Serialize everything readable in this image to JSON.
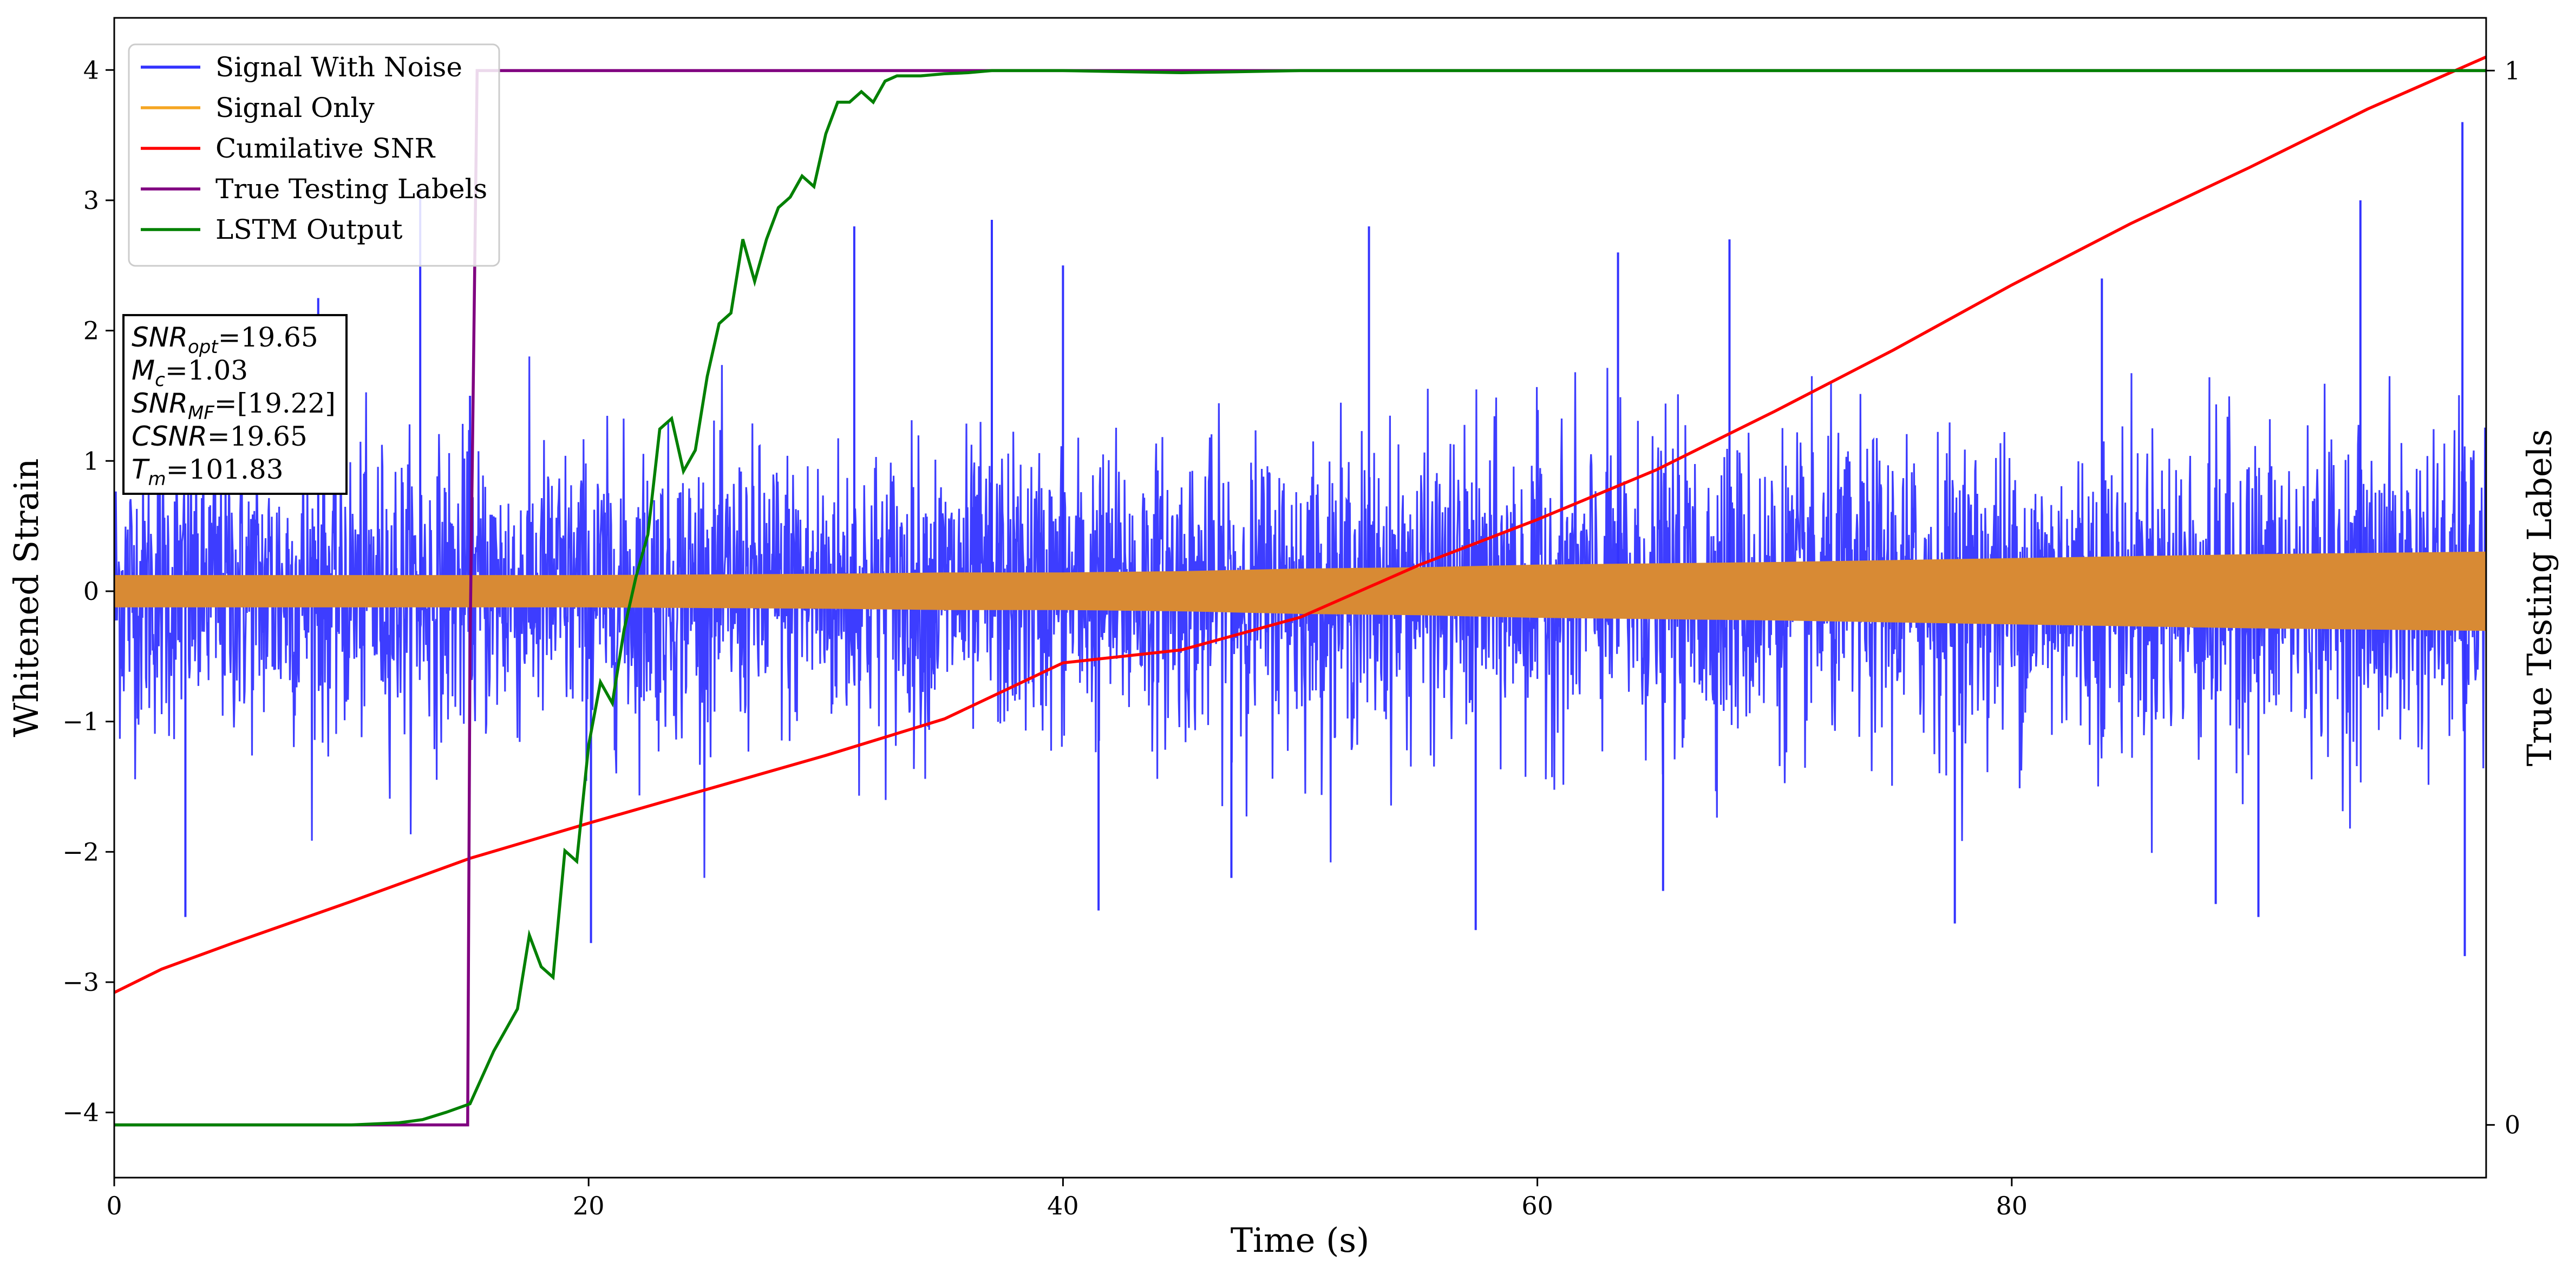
{
  "chart_data": {
    "type": "line",
    "xlabel": "Time (s)",
    "ylabel": "Whitened Strain",
    "y2label": "True Testing Labels",
    "xlim": [
      0,
      100
    ],
    "ylim": [
      -4.5,
      4.4
    ],
    "y2lim": [
      -0.05,
      1.05
    ],
    "x_ticks": [
      0,
      20,
      40,
      60,
      80
    ],
    "y_ticks": [
      -4,
      -3,
      -2,
      -1,
      0,
      1,
      2,
      3,
      4
    ],
    "y2_ticks": [
      0,
      1
    ],
    "x_tick_labels": [
      "0",
      "20",
      "40",
      "60",
      "80"
    ],
    "y_tick_labels": [
      "−4",
      "−3",
      "−2",
      "−1",
      "0",
      "1",
      "2",
      "3",
      "4"
    ],
    "y2_tick_labels": [
      "0",
      "1"
    ],
    "legend_position": "top-left",
    "grid": false,
    "series": [
      {
        "name": "Signal With Noise",
        "color": "#3333ff",
        "axis": "left",
        "render": "noise-band",
        "envelope_x": [
          0,
          10,
          20,
          30,
          40,
          50,
          60,
          70,
          80,
          90,
          100
        ],
        "envelope_typical": [
          1.0,
          1.0,
          1.0,
          1.0,
          1.0,
          1.0,
          1.05,
          1.05,
          1.05,
          1.1,
          1.1
        ],
        "peak_spikes": [
          {
            "x": 3.0,
            "y": -2.5
          },
          {
            "x": 8.6,
            "y": 2.25
          },
          {
            "x": 12.9,
            "y": 3.1
          },
          {
            "x": 15.0,
            "y": 1.5
          },
          {
            "x": 20.1,
            "y": -2.7
          },
          {
            "x": 31.2,
            "y": 2.8
          },
          {
            "x": 37.0,
            "y": 2.85
          },
          {
            "x": 40.0,
            "y": 2.5
          },
          {
            "x": 41.5,
            "y": -2.45
          },
          {
            "x": 47.1,
            "y": -2.2
          },
          {
            "x": 52.9,
            "y": 2.8
          },
          {
            "x": 57.4,
            "y": -2.6
          },
          {
            "x": 63.4,
            "y": 2.6
          },
          {
            "x": 65.3,
            "y": -2.3
          },
          {
            "x": 68.1,
            "y": 2.7
          },
          {
            "x": 77.6,
            "y": -2.55
          },
          {
            "x": 83.8,
            "y": 2.4
          },
          {
            "x": 88.6,
            "y": -2.4
          },
          {
            "x": 90.4,
            "y": -2.5
          },
          {
            "x": 94.7,
            "y": 3.0
          },
          {
            "x": 99.0,
            "y": 3.6
          },
          {
            "x": 99.1,
            "y": -2.8
          }
        ]
      },
      {
        "name": "Signal Only",
        "color": "#f5a623",
        "axis": "left",
        "render": "envelope",
        "x": [
          0,
          10,
          20,
          30,
          35,
          40,
          45,
          50,
          55,
          60,
          70,
          80,
          90,
          100
        ],
        "amplitude": [
          0.12,
          0.12,
          0.12,
          0.13,
          0.14,
          0.14,
          0.15,
          0.17,
          0.18,
          0.2,
          0.22,
          0.25,
          0.28,
          0.3
        ]
      },
      {
        "name": "Cumilative SNR",
        "color": "#ff0000",
        "axis": "left",
        "x": [
          0,
          2,
          5,
          10,
          15,
          20,
          25,
          30,
          35,
          40,
          45,
          50,
          55,
          60,
          65,
          70,
          75,
          80,
          85,
          90,
          95,
          100
        ],
        "y": [
          -3.08,
          -2.9,
          -2.7,
          -2.38,
          -2.05,
          -1.78,
          -1.52,
          -1.26,
          -0.98,
          -0.55,
          -0.45,
          -0.2,
          0.2,
          0.55,
          0.93,
          1.38,
          1.85,
          2.35,
          2.82,
          3.25,
          3.7,
          4.1
        ]
      },
      {
        "name": "True Testing Labels",
        "color": "#800080",
        "axis": "right",
        "x": [
          0,
          14.9,
          15.0,
          15.3,
          100
        ],
        "y": [
          0,
          0,
          0.45,
          1,
          1
        ]
      },
      {
        "name": "LSTM Output",
        "color": "#008000",
        "axis": "right",
        "x": [
          0,
          10,
          12,
          13,
          14,
          15,
          16,
          17,
          17.5,
          18,
          18.5,
          19,
          19.5,
          20,
          20.5,
          21,
          21.5,
          22,
          22.5,
          23,
          23.5,
          24,
          24.5,
          25,
          25.5,
          26,
          26.5,
          27,
          27.5,
          28,
          28.5,
          29,
          29.5,
          30,
          30.5,
          31,
          31.5,
          32,
          32.5,
          33,
          34,
          35,
          36,
          37,
          38,
          40,
          45,
          50,
          100
        ],
        "y": [
          0,
          0,
          0.002,
          0.005,
          0.012,
          0.02,
          0.07,
          0.11,
          0.18,
          0.15,
          0.14,
          0.26,
          0.25,
          0.36,
          0.42,
          0.4,
          0.47,
          0.52,
          0.56,
          0.66,
          0.67,
          0.62,
          0.64,
          0.71,
          0.76,
          0.77,
          0.84,
          0.8,
          0.84,
          0.87,
          0.88,
          0.9,
          0.89,
          0.94,
          0.97,
          0.97,
          0.98,
          0.97,
          0.99,
          0.995,
          0.995,
          0.997,
          0.998,
          1.0,
          1.0,
          1.0,
          0.998,
          1.0,
          1.0
        ]
      }
    ],
    "info_box": [
      {
        "sym": "SNR",
        "sub": "opt",
        "rest": "=19.65"
      },
      {
        "sym": "M",
        "sub": "c",
        "rest": "=1.03"
      },
      {
        "sym": "SNR",
        "sub": "MF",
        "rest": "=[19.22]"
      },
      {
        "sym": "CSNR",
        "sub": "",
        "rest": "=19.65"
      },
      {
        "sym": "T",
        "sub": "m",
        "rest": "=101.83"
      }
    ]
  }
}
